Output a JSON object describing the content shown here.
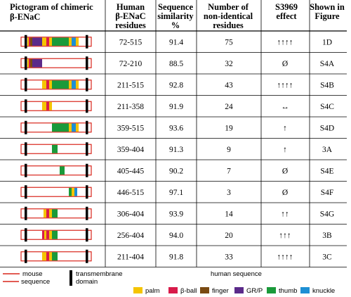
{
  "header": {
    "pictogram": [
      "Pictogram of chimeric",
      "β-ENaC"
    ],
    "residues": [
      "Human",
      "β-ENaC",
      "residues"
    ],
    "similarity": [
      "Sequence",
      "similarity",
      "%"
    ],
    "nonidentical": [
      "Number of",
      "non-identical",
      "residues"
    ],
    "effect": [
      "S3969",
      "effect"
    ],
    "figure": [
      "Shown in",
      "Figure"
    ]
  },
  "colors": {
    "mouse_line": "#d9261c",
    "transmembrane": "#000000",
    "palm": "#f5c400",
    "beta_ball": "#d81b4a",
    "finger": "#7a4a12",
    "grp": "#5b2a8a",
    "thumb": "#1a9a3a",
    "knuckle": "#1e8fd4"
  },
  "rows": [
    {
      "residues": "72-515",
      "similarity": "91.4",
      "nonidentical": "75",
      "effect": "↑↑↑↑",
      "figure": "1D",
      "blocks": [
        [
          "palm",
          0.09,
          0.11
        ],
        [
          "beta_ball",
          0.11,
          0.13
        ],
        [
          "finger",
          0.13,
          0.16
        ],
        [
          "grp",
          0.16,
          0.3
        ],
        [
          "palm",
          0.3,
          0.36
        ],
        [
          "beta_ball",
          0.36,
          0.4
        ],
        [
          "palm",
          0.4,
          0.44
        ],
        [
          "thumb",
          0.44,
          0.68
        ],
        [
          "palm",
          0.68,
          0.72
        ],
        [
          "knuckle",
          0.72,
          0.78
        ],
        [
          "palm",
          0.78,
          0.82
        ]
      ]
    },
    {
      "residues": "72-210",
      "similarity": "88.5",
      "nonidentical": "32",
      "effect": "Ø",
      "figure": "S4A",
      "blocks": [
        [
          "palm",
          0.09,
          0.11
        ],
        [
          "beta_ball",
          0.11,
          0.13
        ],
        [
          "finger",
          0.13,
          0.16
        ],
        [
          "grp",
          0.16,
          0.3
        ]
      ]
    },
    {
      "residues": "211-515",
      "similarity": "92.8",
      "nonidentical": "43",
      "effect": "↑↑↑↑",
      "figure": "S4B",
      "blocks": [
        [
          "palm",
          0.3,
          0.36
        ],
        [
          "beta_ball",
          0.36,
          0.4
        ],
        [
          "palm",
          0.4,
          0.44
        ],
        [
          "thumb",
          0.44,
          0.68
        ],
        [
          "palm",
          0.68,
          0.72
        ],
        [
          "knuckle",
          0.72,
          0.78
        ],
        [
          "palm",
          0.78,
          0.82
        ]
      ]
    },
    {
      "residues": "211-358",
      "similarity": "91.9",
      "nonidentical": "24",
      "effect": "↔",
      "figure": "S4C",
      "blocks": [
        [
          "palm",
          0.3,
          0.36
        ],
        [
          "beta_ball",
          0.36,
          0.4
        ],
        [
          "palm",
          0.4,
          0.44
        ]
      ]
    },
    {
      "residues": "359-515",
      "similarity": "93.6",
      "nonidentical": "19",
      "effect": "↑",
      "figure": "S4D",
      "blocks": [
        [
          "thumb",
          0.44,
          0.68
        ],
        [
          "palm",
          0.68,
          0.72
        ],
        [
          "knuckle",
          0.72,
          0.78
        ],
        [
          "palm",
          0.78,
          0.82
        ]
      ]
    },
    {
      "residues": "359-404",
      "similarity": "91.3",
      "nonidentical": "9",
      "effect": "↑",
      "figure": "3A",
      "blocks": [
        [
          "thumb",
          0.44,
          0.52
        ]
      ]
    },
    {
      "residues": "405-445",
      "similarity": "90.2",
      "nonidentical": "7",
      "effect": "Ø",
      "figure": "S4E",
      "blocks": [
        [
          "thumb",
          0.55,
          0.62
        ]
      ]
    },
    {
      "residues": "446-515",
      "similarity": "97.1",
      "nonidentical": "3",
      "effect": "Ø",
      "figure": "S4F",
      "blocks": [
        [
          "thumb",
          0.68,
          0.72
        ],
        [
          "palm",
          0.72,
          0.76
        ],
        [
          "knuckle",
          0.76,
          0.8
        ]
      ]
    },
    {
      "residues": "306-404",
      "similarity": "93.9",
      "nonidentical": "14",
      "effect": "↑↑",
      "figure": "S4G",
      "blocks": [
        [
          "palm",
          0.32,
          0.36
        ],
        [
          "beta_ball",
          0.36,
          0.4
        ],
        [
          "palm",
          0.4,
          0.44
        ],
        [
          "thumb",
          0.44,
          0.52
        ]
      ]
    },
    {
      "residues": "256-404",
      "similarity": "94.0",
      "nonidentical": "20",
      "effect": "↑↑↑",
      "figure": "3B",
      "blocks": [
        [
          "beta_ball",
          0.3,
          0.33
        ],
        [
          "palm",
          0.33,
          0.36
        ],
        [
          "beta_ball",
          0.36,
          0.4
        ],
        [
          "palm",
          0.4,
          0.44
        ],
        [
          "thumb",
          0.44,
          0.52
        ]
      ]
    },
    {
      "residues": "211-404",
      "similarity": "91.8",
      "nonidentical": "33",
      "effect": "↑↑↑↑",
      "figure": "3C",
      "blocks": [
        [
          "palm",
          0.3,
          0.36
        ],
        [
          "beta_ball",
          0.36,
          0.4
        ],
        [
          "palm",
          0.4,
          0.44
        ],
        [
          "thumb",
          0.44,
          0.52
        ]
      ]
    }
  ],
  "legend": {
    "mouse": "mouse",
    "sequence": "sequence",
    "transmembrane": "transmembrane",
    "domain": "domain",
    "human_sequence": "human sequence",
    "items": [
      {
        "key": "palm",
        "label": "palm"
      },
      {
        "key": "beta_ball",
        "label": "β-ball"
      },
      {
        "key": "finger",
        "label": "finger"
      },
      {
        "key": "grp",
        "label": "GR/P"
      },
      {
        "key": "thumb",
        "label": "thumb"
      },
      {
        "key": "knuckle",
        "label": "knuckle"
      }
    ]
  }
}
